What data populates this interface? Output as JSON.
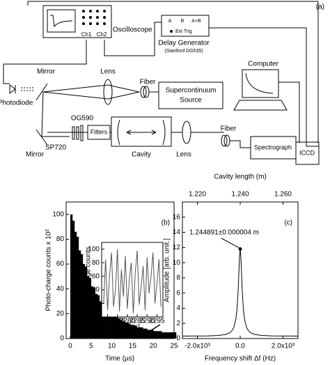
{
  "diagram": {
    "panel_label": "(a)",
    "oscilloscope": "Oscilloscope",
    "ch1": "Ch1",
    "ch2": "Ch2",
    "delay_a": "A",
    "delay_b": "B",
    "delay_ab": "A+B",
    "ext_trig": "Ext Trig",
    "delay_generator": "Delay Generator",
    "delay_model": "(Stanford DG535)",
    "computer": "Computer",
    "mirrors": [
      "Mirror",
      "Mirror"
    ],
    "lenses": [
      "Lens",
      "Lens"
    ],
    "fibers": [
      "Fiber",
      "Fiber"
    ],
    "source": [
      "Supercontinuum",
      "Source"
    ],
    "photodiode": "Photodiode",
    "og590": "OG590",
    "filters": "Filters",
    "sp720": "SP720",
    "cavity": "Cavity",
    "spectrograph": "Spectrograph",
    "iccd": "ICCD"
  },
  "chart_data": [
    {
      "type": "bar",
      "panel_label": "(b)",
      "x_label": "Time (µs)",
      "y_label": "Photo-charge counts x 10²",
      "color": "#000000",
      "x": [
        0,
        0.5,
        1,
        1.5,
        2,
        2.5,
        3,
        3.5,
        4,
        4.5,
        5,
        5.5,
        6,
        6.5,
        7,
        7.5,
        8,
        8.5,
        9,
        9.5,
        10,
        10.5,
        11,
        11.5,
        12,
        12.5,
        13,
        13.5,
        14,
        14.5,
        15,
        15.5,
        16,
        16.5,
        17,
        17.5,
        18,
        18.5,
        19,
        19.5,
        20,
        20.5,
        21,
        21.5,
        22,
        22.5,
        23,
        23.5,
        24,
        24.5,
        25
      ],
      "values": [
        100,
        95,
        86,
        82,
        71,
        68,
        60,
        58,
        50,
        49,
        42,
        41,
        36,
        35,
        30,
        30,
        26,
        25,
        22,
        22,
        19,
        19,
        17,
        16,
        15,
        14,
        13,
        13,
        12,
        11,
        11,
        10,
        9,
        9,
        9,
        8,
        8,
        7,
        7,
        7,
        6,
        6,
        6,
        6,
        5,
        5,
        5,
        5,
        5,
        5,
        5
      ],
      "xlim": [
        -1,
        25
      ],
      "xticks": [
        0,
        5,
        10,
        15,
        20,
        25
      ],
      "ylim": [
        0,
        110
      ],
      "yticks": [
        0,
        20,
        40,
        60,
        80,
        100
      ],
      "inset": {
        "type": "line",
        "x_label": "Time [µs]",
        "y_label": "Photo-charge counts",
        "color": "#555555",
        "x": [
          2268,
          2269,
          2270,
          2271,
          2272,
          2273,
          2274,
          2275,
          2276,
          2277,
          2278,
          2279,
          2280,
          2281,
          2282,
          2283,
          2284,
          2285,
          2286,
          2287,
          2288,
          2289,
          2290,
          2291,
          2292,
          2293,
          2294,
          2295,
          2296,
          2297
        ],
        "values": [
          20,
          85,
          10,
          60,
          95,
          15,
          40,
          100,
          8,
          70,
          30,
          90,
          12,
          55,
          80,
          5,
          65,
          98,
          18,
          45,
          75,
          10,
          88,
          35,
          60,
          95,
          20,
          50,
          85,
          15
        ],
        "xlim": [
          2267,
          2298
        ],
        "xticks": [
          2270,
          2275,
          2280,
          2285,
          2290,
          2295
        ],
        "ylim": [
          0,
          110
        ],
        "yticks": [
          0,
          20,
          40,
          60,
          80,
          100
        ]
      }
    },
    {
      "type": "line",
      "panel_label": "(c)",
      "x_label": "Frequency shift Δf (Hz)",
      "y_label": "Amplitude [arb. unit.]",
      "x2_label": "Cavity length (m)",
      "annotation": "1.244891±0.000004 m",
      "color": "#000000",
      "x": [
        -2700,
        -2000,
        -1500,
        -1000,
        -700,
        -500,
        -400,
        -300,
        -200,
        -150,
        -100,
        -60,
        -30,
        0,
        30,
        60,
        100,
        150,
        200,
        300,
        400,
        500,
        700,
        1000,
        1500,
        2000,
        2700
      ],
      "values": [
        0.32,
        0.33,
        0.35,
        0.41,
        0.53,
        0.74,
        0.98,
        1.45,
        2.6,
        3.84,
        6.05,
        8.76,
        10.85,
        11.8,
        10.85,
        8.76,
        6.05,
        3.84,
        2.6,
        1.45,
        0.98,
        0.74,
        0.53,
        0.41,
        0.35,
        0.33,
        0.32
      ],
      "xlim": [
        -2700,
        2700
      ],
      "xticks": [
        {
          "value": -2000,
          "label": "-2.0x10³"
        },
        {
          "value": 0,
          "label": "0.0"
        },
        {
          "value": 2000,
          "label": "2.0x10³"
        }
      ],
      "x2lim": [
        1.213,
        1.267
      ],
      "x2ticks": [
        {
          "value": 1.22,
          "label": "1.220"
        },
        {
          "value": 1.24,
          "label": "1.240"
        },
        {
          "value": 1.26,
          "label": "1.260"
        }
      ],
      "ylim": [
        0,
        18
      ],
      "yticks": [
        0,
        2,
        4,
        6,
        8,
        10,
        12,
        14,
        16
      ]
    }
  ]
}
